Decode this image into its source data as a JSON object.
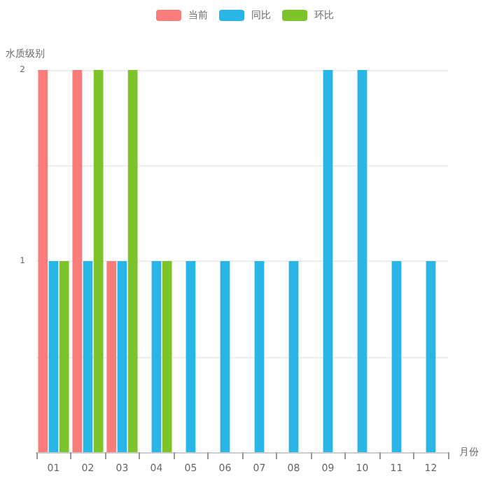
{
  "chart_data": {
    "type": "bar",
    "ylabel": "水质级别",
    "xlabel": "月份",
    "categories": [
      "01",
      "02",
      "03",
      "04",
      "05",
      "06",
      "07",
      "08",
      "09",
      "10",
      "11",
      "12"
    ],
    "series": [
      {
        "name": "当前",
        "color": "#f87c7a",
        "values": [
          2,
          2,
          1,
          0,
          0,
          0,
          0,
          0,
          0,
          0,
          0,
          0
        ]
      },
      {
        "name": "同比",
        "color": "#29b6e6",
        "values": [
          1,
          1,
          1,
          1,
          1,
          1,
          1,
          1,
          2,
          2,
          1,
          1
        ]
      },
      {
        "name": "环比",
        "color": "#7dc42a",
        "values": [
          1,
          2,
          2,
          1,
          0,
          0,
          0,
          0,
          0,
          0,
          0,
          0
        ]
      }
    ],
    "ylim": [
      0,
      2
    ],
    "yticks": [
      {
        "value": 0,
        "label": null
      },
      {
        "value": 0.5,
        "label": null
      },
      1,
      {
        "value": 1.5,
        "label": null
      },
      2
    ],
    "grid": "y",
    "legend": "top"
  }
}
